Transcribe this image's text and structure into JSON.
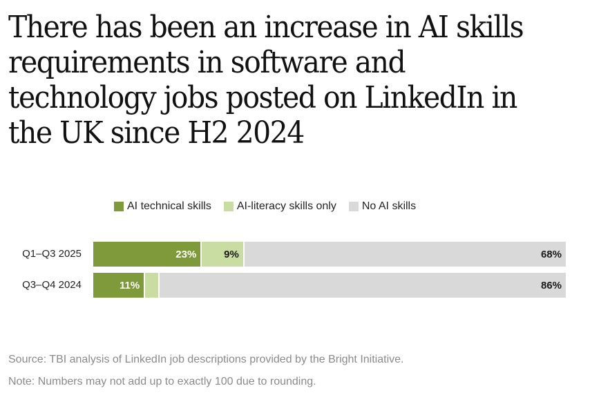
{
  "title": "There has been an increase in AI skills requirements in software and technology jobs posted on LinkedIn in the UK since H2 2024",
  "legend": [
    {
      "label": "AI technical skills",
      "color": "#7f9a3a"
    },
    {
      "label": "AI-literacy skills only",
      "color": "#c9dca2"
    },
    {
      "label": "No AI skills",
      "color": "#d9d9d9"
    }
  ],
  "chart_data": {
    "type": "bar",
    "orientation": "horizontal",
    "stacked": true,
    "categories": [
      "Q1–Q3 2025",
      "Q3–Q4 2024"
    ],
    "series": [
      {
        "name": "AI technical skills",
        "values": [
          23,
          11
        ],
        "labels": [
          "23%",
          "11%"
        ],
        "color": "#7f9a3a",
        "label_color": "#ffffff"
      },
      {
        "name": "AI-literacy skills only",
        "values": [
          9,
          3
        ],
        "labels": [
          "9%",
          ""
        ],
        "color": "#c9dca2",
        "label_color": "#1a1a1a"
      },
      {
        "name": "No AI skills",
        "values": [
          68,
          86
        ],
        "labels": [
          "68%",
          "86%"
        ],
        "color": "#d9d9d9",
        "label_color": "#1a1a1a"
      }
    ],
    "xlim": [
      0,
      100
    ],
    "legend_position": "top"
  },
  "source": "Source: TBI analysis of LinkedIn job descriptions provided by the Bright Initiative.",
  "note": "Note: Numbers may not add up to exactly 100 due to rounding."
}
